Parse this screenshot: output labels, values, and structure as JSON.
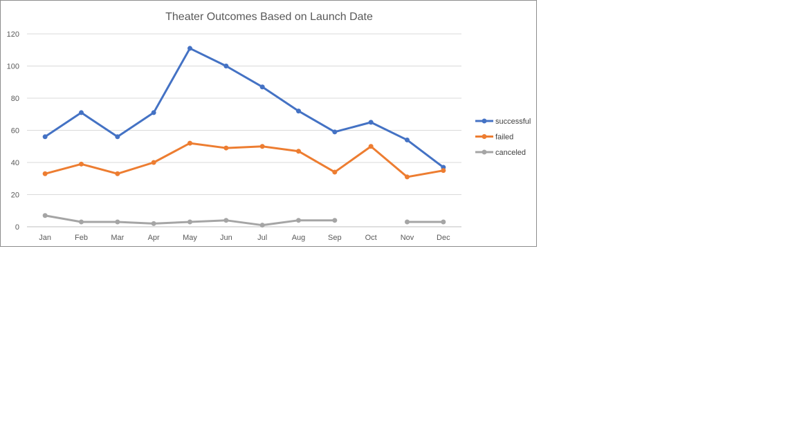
{
  "chart_data": {
    "type": "line",
    "title": "Theater Outcomes Based on Launch Date",
    "xlabel": "",
    "ylabel": "",
    "categories": [
      "Jan",
      "Feb",
      "Mar",
      "Apr",
      "May",
      "Jun",
      "Jul",
      "Aug",
      "Sep",
      "Oct",
      "Nov",
      "Dec"
    ],
    "ylim": [
      0,
      120
    ],
    "yticks": [
      0,
      20,
      40,
      60,
      80,
      100,
      120
    ],
    "grid": "horizontal",
    "legend": "right",
    "series": [
      {
        "name": "successful",
        "color": "#4472C4",
        "values": [
          56,
          71,
          56,
          71,
          111,
          100,
          87,
          72,
          59,
          65,
          54,
          37
        ]
      },
      {
        "name": "failed",
        "color": "#ED7D31",
        "values": [
          33,
          39,
          33,
          40,
          52,
          49,
          50,
          47,
          34,
          50,
          31,
          35
        ]
      },
      {
        "name": "canceled",
        "color": "#A5A5A5",
        "values": [
          7,
          3,
          3,
          2,
          3,
          4,
          1,
          4,
          4,
          null,
          3,
          3
        ]
      }
    ]
  }
}
